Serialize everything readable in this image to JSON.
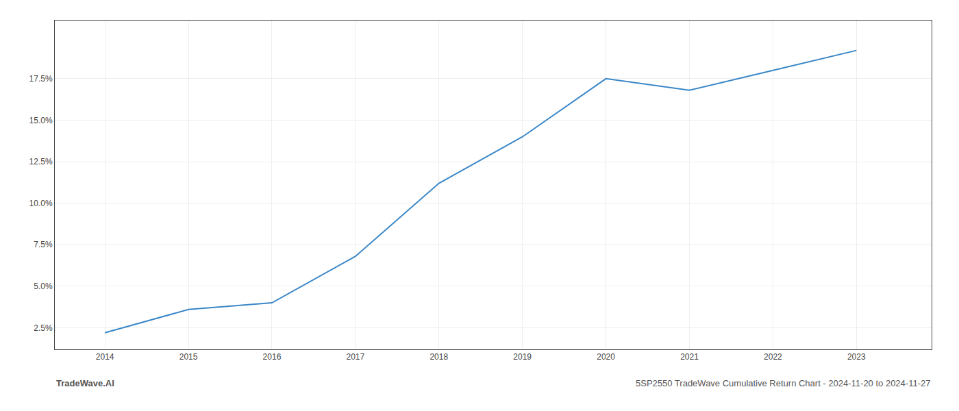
{
  "chart_data": {
    "type": "line",
    "x": [
      2014,
      2015,
      2016,
      2017,
      2018,
      2019,
      2020,
      2021,
      2022,
      2023
    ],
    "values": [
      2.2,
      3.6,
      4.0,
      6.8,
      11.2,
      14.0,
      17.5,
      16.8,
      18.0,
      19.2
    ],
    "color": "#3a87c8",
    "xlim": [
      2013.4,
      2023.9
    ],
    "xticks": [
      2014,
      2015,
      2016,
      2017,
      2018,
      2019,
      2020,
      2021,
      2022,
      2023
    ],
    "ylim": [
      1.2,
      21.0
    ],
    "yticks": [
      {
        "value": 2.5,
        "label": "2.5%"
      },
      {
        "value": 5.0,
        "label": "5.0%"
      },
      {
        "value": 7.5,
        "label": "7.5%"
      },
      {
        "value": 10.0,
        "label": "10.0%"
      },
      {
        "value": 12.5,
        "label": "12.5%"
      },
      {
        "value": 15.0,
        "label": "15.0%"
      },
      {
        "value": 17.5,
        "label": "17.5%"
      }
    ],
    "grid": true,
    "annotations": [
      "TradeWave.AI",
      "5SP2550 TradeWave Cumulative Return Chart - 2024-11-20 to 2024-11-27"
    ]
  }
}
